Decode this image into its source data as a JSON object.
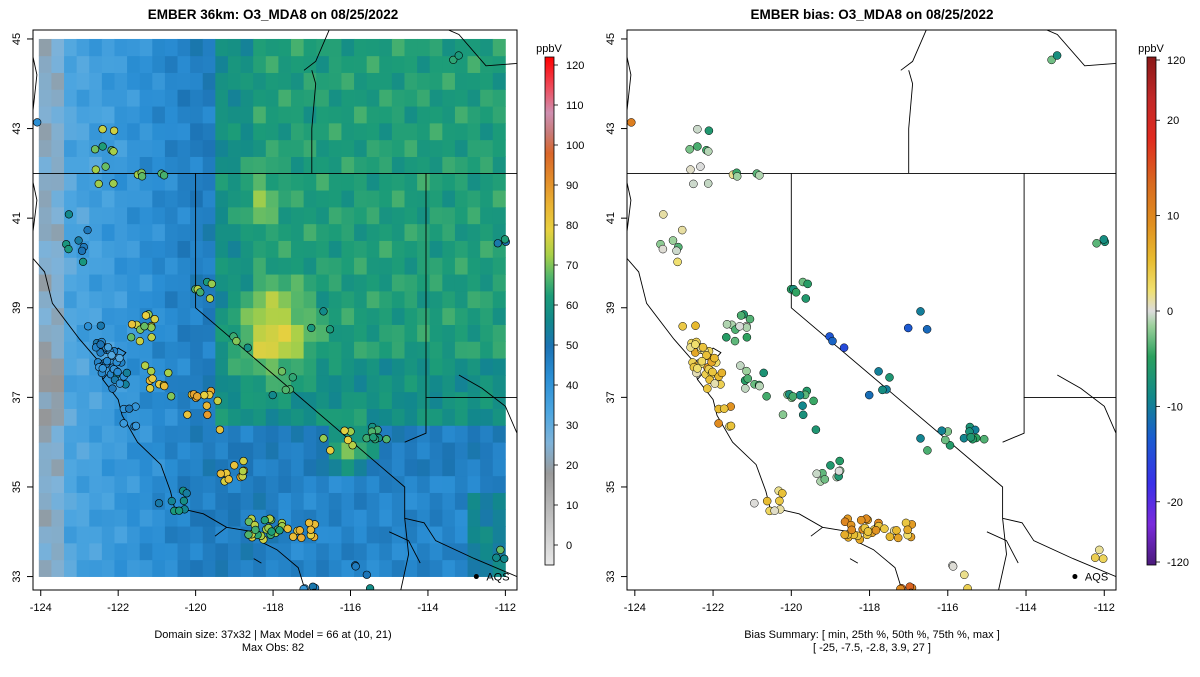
{
  "chart_data": [
    {
      "type": "heatmap",
      "title": "EMBER 36km: O3_MDA8 on 08/25/2022",
      "x_ticks": [
        "-124",
        "-122",
        "-120",
        "-118",
        "-116",
        "-114",
        "-112"
      ],
      "x_tick_values": [
        -124,
        -122,
        -120,
        -118,
        -116,
        -114,
        -112
      ],
      "y_ticks": [
        "33",
        "35",
        "37",
        "39",
        "41",
        "43",
        "45"
      ],
      "y_tick_values": [
        33,
        35,
        37,
        39,
        41,
        43,
        45
      ],
      "xlim": [
        -124.2,
        -111.7
      ],
      "ylim": [
        32.7,
        45.2
      ],
      "grid_extent": {
        "lon": [
          -124.05,
          -112.0
        ],
        "lat": [
          33.0,
          45.0
        ]
      },
      "grid_size": "37x32",
      "colorbar": {
        "label": "ppbV",
        "ticks": [
          "0",
          "10",
          "20",
          "30",
          "40",
          "50",
          "60",
          "70",
          "80",
          "90",
          "100",
          "110",
          "120"
        ],
        "tick_values": [
          0,
          10,
          20,
          30,
          40,
          50,
          60,
          70,
          80,
          90,
          100,
          110,
          120
        ],
        "range": [
          -5,
          122
        ]
      },
      "annotation": "AQS",
      "annotation_lon": -112.75,
      "annotation_lat": 33.0,
      "summary_line1": "Domain size: 37x32 | Max Model = 66 at (10, 21)",
      "summary_line2": "Max Obs: 82",
      "max_model": 66,
      "max_obs": 82
    },
    {
      "type": "scatter",
      "title": "EMBER bias: O3_MDA8 on 08/25/2022",
      "x_ticks": [
        "-124",
        "-122",
        "-120",
        "-118",
        "-116",
        "-114",
        "-112"
      ],
      "x_tick_values": [
        -124,
        -122,
        -120,
        -118,
        -116,
        -114,
        -112
      ],
      "y_ticks": [
        "33",
        "35",
        "37",
        "39",
        "41",
        "43",
        "45"
      ],
      "y_tick_values": [
        33,
        35,
        37,
        39,
        41,
        43,
        45
      ],
      "xlim": [
        -124.2,
        -111.7
      ],
      "ylim": [
        32.7,
        45.2
      ],
      "colorbar": {
        "label": "ppbV",
        "ticks": [
          "-120",
          "-20",
          "-10",
          "0",
          "10",
          "20",
          "120"
        ],
        "tick_values": [
          -120,
          -20,
          -10,
          0,
          10,
          20,
          120
        ]
      },
      "annotation": "AQS",
      "annotation_lon": -112.75,
      "annotation_lat": 33.0,
      "summary_line1": "Bias Summary: [ min, 25th %, 50th %, 75th %, max ]",
      "summary_line2": "[ -25,   -7.5,   -2.8,   3.9,   27 ]",
      "bias_stats": {
        "min": -25,
        "p25": -7.5,
        "p50": -2.8,
        "p75": 3.9,
        "max": 27
      }
    }
  ],
  "colors": {
    "conc_scale": [
      "#dcdcdc",
      "#9a9a9a",
      "#6fb0e0",
      "#3a97d8",
      "#1f79b8",
      "#138a8c",
      "#1fa07a",
      "#6fc06a",
      "#c8d84a",
      "#efcc3a",
      "#eca23a",
      "#dd7328",
      "#d9502a",
      "#c47070",
      "#e74a78",
      "#ff1010"
    ],
    "bias_scale_neg": [
      "#6a1e96",
      "#8a30e8",
      "#2a3ce0",
      "#1b64c8",
      "#138a8c",
      "#2aa060",
      "#88c888",
      "#d8d8d8"
    ],
    "bias_scale_pos": [
      "#d8d8d8",
      "#f0dc60",
      "#e8b830",
      "#e09020",
      "#d86020",
      "#e02020",
      "#b02020",
      "#901818"
    ]
  }
}
